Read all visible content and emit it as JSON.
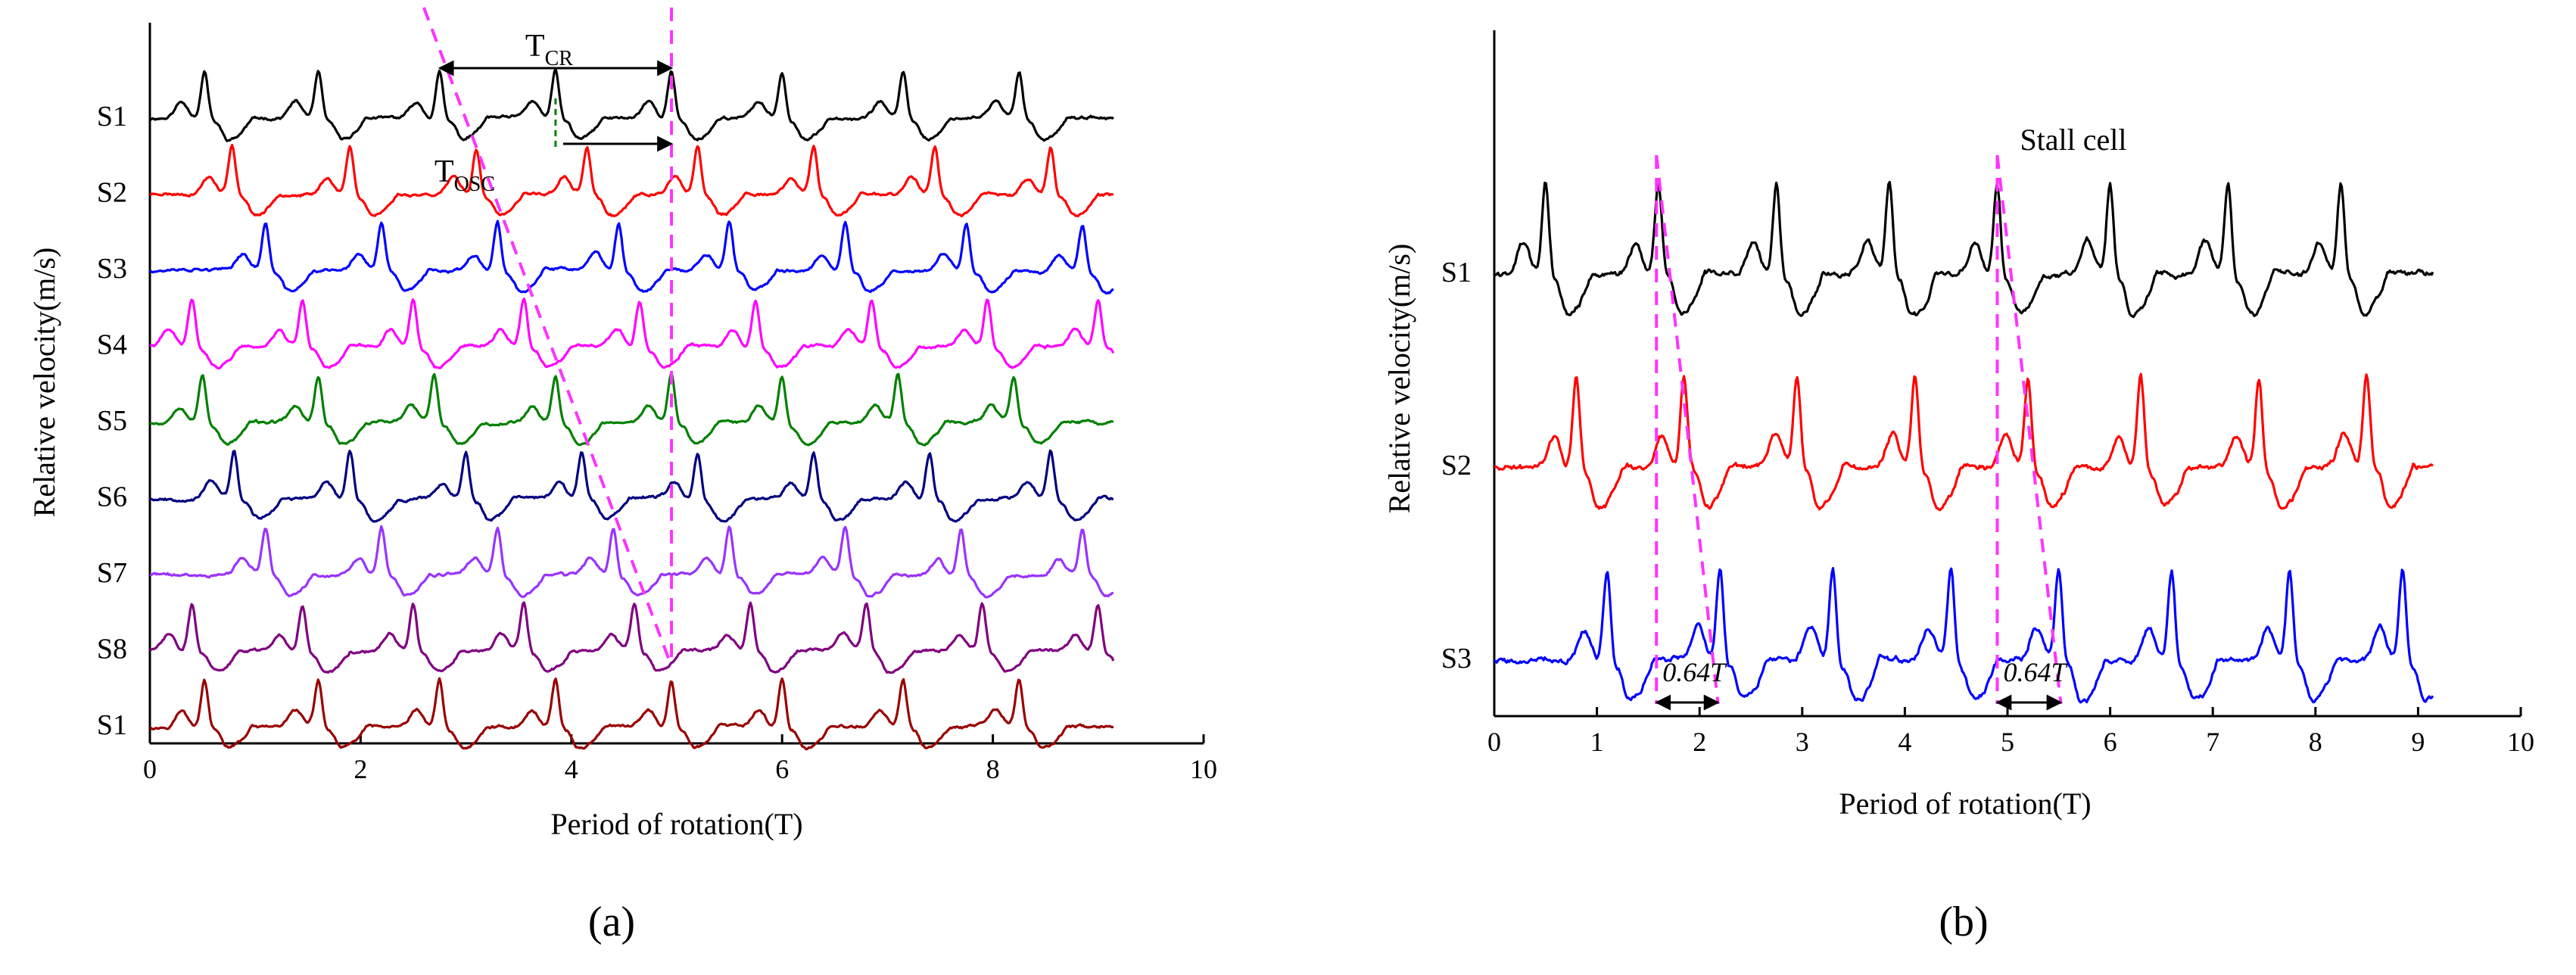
{
  "chart_data": [
    {
      "id": "a",
      "type": "line",
      "panel_label": "(a)",
      "xlabel": "Period of rotation(T)",
      "ylabel": "Relative velocity(m/s)",
      "xlim": [
        0,
        10
      ],
      "xticks": [
        0,
        2,
        4,
        6,
        8,
        10
      ],
      "x_extent": [
        0,
        9.15
      ],
      "series": [
        {
          "name": "S1",
          "color": "#000000",
          "peaks": [
            0.52,
            1.6,
            2.75,
            3.85,
            4.95,
            6.0,
            7.15,
            8.25
          ],
          "seed": 11
        },
        {
          "name": "S2",
          "color": "#ff0000",
          "peaks": [
            0.78,
            1.9,
            3.1,
            4.15,
            5.2,
            6.3,
            7.45,
            8.55
          ],
          "seed": 23
        },
        {
          "name": "S3",
          "color": "#0000ff",
          "peaks": [
            1.1,
            2.2,
            3.3,
            4.45,
            5.5,
            6.6,
            7.75,
            8.85
          ],
          "seed": 37
        },
        {
          "name": "S4",
          "color": "#ff00ff",
          "peaks": [
            0.4,
            1.45,
            2.5,
            3.55,
            4.65,
            5.75,
            6.85,
            7.95,
            9.0
          ],
          "seed": 41
        },
        {
          "name": "S5",
          "color": "#008000",
          "peaks": [
            0.5,
            1.6,
            2.7,
            3.85,
            4.95,
            6.0,
            7.1,
            8.2
          ],
          "seed": 53
        },
        {
          "name": "S6",
          "color": "#000080",
          "peaks": [
            0.8,
            1.9,
            3.0,
            4.1,
            5.2,
            6.3,
            7.4,
            8.55
          ],
          "seed": 67
        },
        {
          "name": "S7",
          "color": "#9933ff",
          "peaks": [
            1.1,
            2.2,
            3.3,
            4.4,
            5.5,
            6.6,
            7.7,
            8.85
          ],
          "seed": 71
        },
        {
          "name": "S8",
          "color": "#800080",
          "peaks": [
            0.4,
            1.45,
            2.5,
            3.55,
            4.6,
            5.7,
            6.8,
            7.9,
            9.0
          ],
          "seed": 83
        },
        {
          "name": "S1",
          "color": "#990000",
          "peaks": [
            0.52,
            1.6,
            2.75,
            3.85,
            4.95,
            6.0,
            7.15,
            8.25
          ],
          "seed": 97
        }
      ],
      "annotations": {
        "tcr_main": "T",
        "tcr_sub": "CR",
        "tosc_main": "T",
        "tosc_sub": "OSC",
        "tcr_range": [
          2.75,
          4.95
        ],
        "tosc_range": [
          3.85,
          4.95
        ]
      },
      "guides": [
        {
          "x_top": 2.6,
          "x_bottom": 4.95
        },
        {
          "x_top": 4.95,
          "x_bottom": 4.95
        }
      ]
    },
    {
      "id": "b",
      "type": "line",
      "panel_label": "(b)",
      "xlabel": "Period of rotation(T)",
      "ylabel": "Relative velocity(m/s)",
      "xlim": [
        0,
        10
      ],
      "xticks": [
        0,
        1,
        2,
        3,
        4,
        5,
        6,
        7,
        8,
        9,
        10
      ],
      "x_extent": [
        0,
        9.15
      ],
      "series": [
        {
          "name": "S1",
          "color": "#000000",
          "peaks": [
            0.5,
            1.6,
            2.75,
            3.85,
            4.9,
            6.0,
            7.15,
            8.25
          ],
          "seed": 131
        },
        {
          "name": "S2",
          "color": "#ff0000",
          "peaks": [
            0.8,
            1.85,
            2.95,
            4.1,
            5.2,
            6.3,
            7.45,
            8.5
          ],
          "seed": 149
        },
        {
          "name": "S3",
          "color": "#0000ff",
          "peaks": [
            1.1,
            2.2,
            3.3,
            4.45,
            5.5,
            6.6,
            7.75,
            8.85
          ],
          "seed": 163
        }
      ],
      "annotations": {
        "stall_cell": "Stall cell",
        "interval_label": "0.64T",
        "intervals": [
          [
            1.58,
            2.18
          ],
          [
            4.9,
            5.52
          ]
        ]
      },
      "guides": [
        {
          "x_top": 1.58,
          "x_bottom": 1.58
        },
        {
          "x_top": 1.58,
          "x_bottom": 2.18
        },
        {
          "x_top": 4.9,
          "x_bottom": 4.9
        },
        {
          "x_top": 4.9,
          "x_bottom": 5.52
        }
      ]
    }
  ]
}
